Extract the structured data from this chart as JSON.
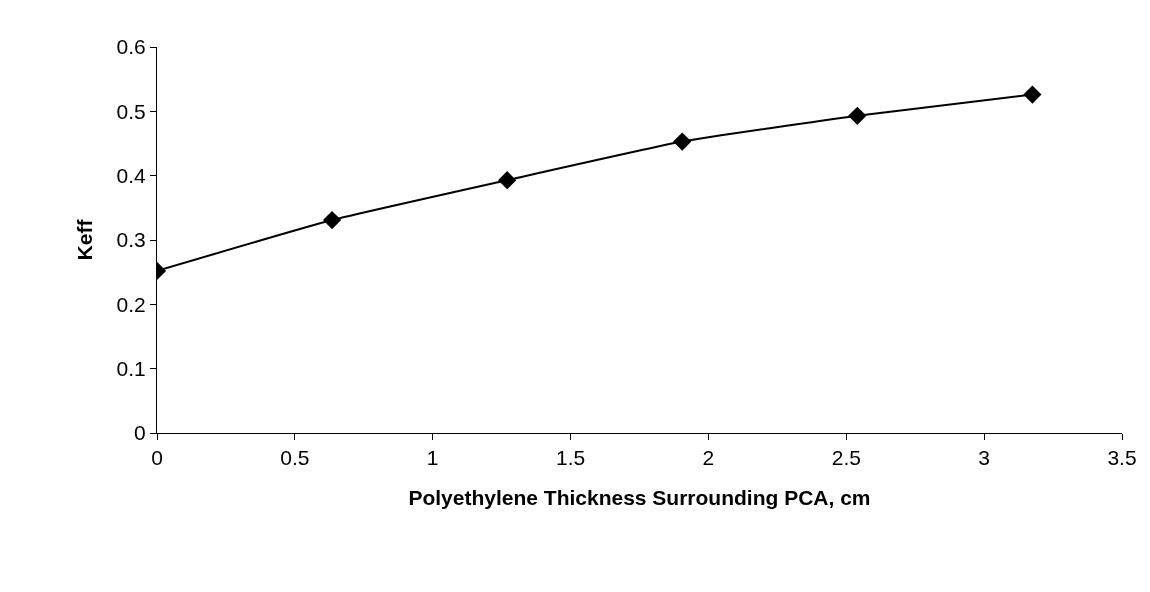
{
  "chart_data": {
    "type": "line",
    "xlabel": "Polyethylene Thickness Surrounding PCA, cm",
    "ylabel": "Keff",
    "x": [
      0,
      0.635,
      1.27,
      1.905,
      2.54,
      3.175
    ],
    "series": [
      {
        "color": "#000000",
        "values": [
          0.252,
          0.331,
          0.393,
          0.453,
          0.493,
          0.526
        ]
      }
    ],
    "xlim": [
      0,
      3.5
    ],
    "xticks": [
      0,
      0.5,
      1,
      1.5,
      2,
      2.5,
      3,
      3.5
    ],
    "ylim": [
      0,
      0.6
    ],
    "yticks": [
      0,
      0.1,
      0.2,
      0.3,
      0.4,
      0.5,
      0.6
    ],
    "marker": "diamond",
    "line_style": "solid"
  }
}
